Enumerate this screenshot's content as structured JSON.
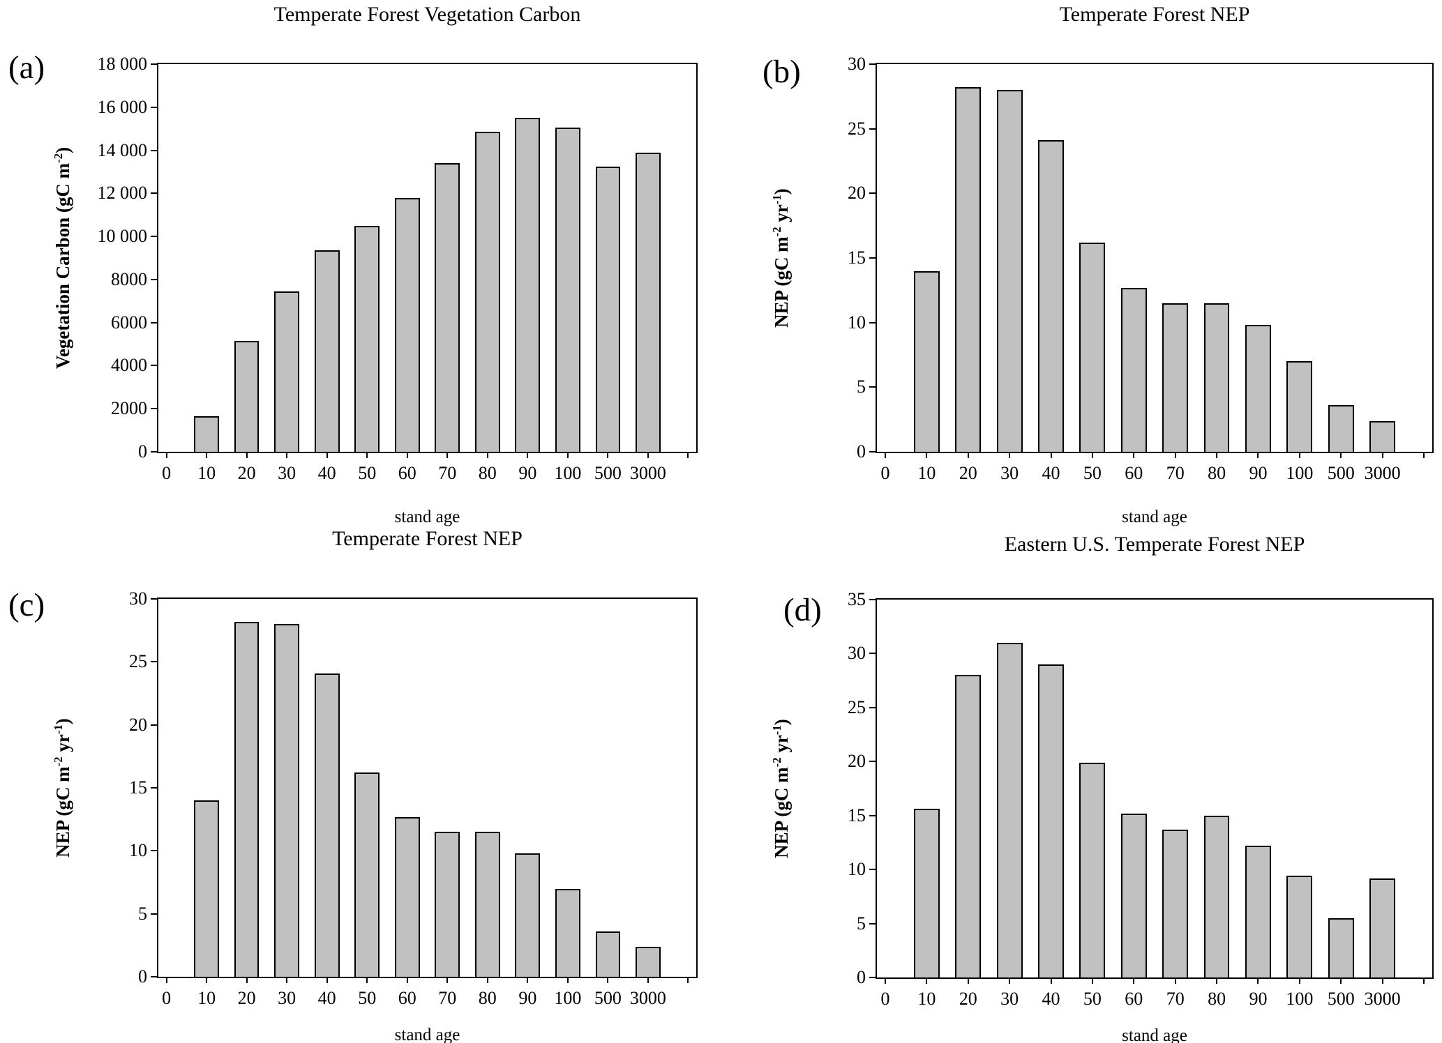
{
  "chart_data": [
    {
      "type": "bar",
      "panel_label": "(a)",
      "title": "Temperate Forest Vegetation Carbon",
      "xlabel": "stand age",
      "ylabel": "Vegetation Carbon (gC m⁻²)",
      "ylabel_parts": [
        {
          "t": "Vegetation Carbon (gC m"
        },
        {
          "t": "-2",
          "sup": true
        },
        {
          "t": ")"
        }
      ],
      "ylim": [
        0,
        18000
      ],
      "grid": false,
      "legend": false,
      "bar_fill": "#c1c1c1",
      "bar_border": "#000000",
      "categories": [
        "0",
        "10",
        "20",
        "30",
        "40",
        "50",
        "60",
        "70",
        "80",
        "90",
        "100",
        "500",
        "3000"
      ],
      "values": [
        null,
        1650,
        5150,
        7450,
        9350,
        10500,
        11800,
        13400,
        14850,
        15500,
        15050,
        13250,
        13900
      ],
      "yticks": [
        {
          "v": 0,
          "label": "0"
        },
        {
          "v": 2000,
          "label": "2000"
        },
        {
          "v": 4000,
          "label": "4000"
        },
        {
          "v": 6000,
          "label": "6000"
        },
        {
          "v": 8000,
          "label": "8000"
        },
        {
          "v": 10000,
          "label": "10 000"
        },
        {
          "v": 12000,
          "label": "12 000"
        },
        {
          "v": 14000,
          "label": "14 000"
        },
        {
          "v": 16000,
          "label": "16 000"
        },
        {
          "v": 18000,
          "label": "18 000"
        }
      ],
      "extra_tick": true
    },
    {
      "type": "bar",
      "panel_label": "(b)",
      "title": "Temperate Forest NEP",
      "xlabel": "stand age",
      "ylabel": "NEP (gC m⁻² yr⁻¹)",
      "ylabel_parts": [
        {
          "t": "NEP (gC m"
        },
        {
          "t": "-2",
          "sup": true
        },
        {
          "t": " yr"
        },
        {
          "t": "-1",
          "sup": true
        },
        {
          "t": ")"
        }
      ],
      "ylim": [
        0,
        30
      ],
      "grid": false,
      "legend": false,
      "bar_fill": "#c1c1c1",
      "bar_border": "#000000",
      "categories": [
        "0",
        "10",
        "20",
        "30",
        "40",
        "50",
        "60",
        "70",
        "80",
        "90",
        "100",
        "500",
        "3000"
      ],
      "values": [
        null,
        14.0,
        28.2,
        28.0,
        24.1,
        16.2,
        12.7,
        11.5,
        11.5,
        9.8,
        7.0,
        3.6,
        2.4
      ],
      "yticks": [
        {
          "v": 0,
          "label": "0"
        },
        {
          "v": 5,
          "label": "5"
        },
        {
          "v": 10,
          "label": "10"
        },
        {
          "v": 15,
          "label": "15"
        },
        {
          "v": 20,
          "label": "20"
        },
        {
          "v": 25,
          "label": "25"
        },
        {
          "v": 30,
          "label": "30"
        }
      ],
      "extra_tick": true
    },
    {
      "type": "bar",
      "panel_label": "(c)",
      "title": "Temperate Forest NEP",
      "xlabel": "stand age",
      "ylabel": "NEP (gC m⁻² yr⁻¹)",
      "ylabel_parts": [
        {
          "t": "NEP (gC m"
        },
        {
          "t": "-2",
          "sup": true
        },
        {
          "t": " yr"
        },
        {
          "t": "-1",
          "sup": true
        },
        {
          "t": ")"
        }
      ],
      "ylim": [
        0,
        30
      ],
      "grid": false,
      "legend": false,
      "bar_fill": "#c1c1c1",
      "bar_border": "#000000",
      "categories": [
        "0",
        "10",
        "20",
        "30",
        "40",
        "50",
        "60",
        "70",
        "80",
        "90",
        "100",
        "500",
        "3000"
      ],
      "values": [
        null,
        14.0,
        28.2,
        28.0,
        24.1,
        16.2,
        12.7,
        11.5,
        11.5,
        9.8,
        7.0,
        3.6,
        2.4
      ],
      "yticks": [
        {
          "v": 0,
          "label": "0"
        },
        {
          "v": 5,
          "label": "5"
        },
        {
          "v": 10,
          "label": "10"
        },
        {
          "v": 15,
          "label": "15"
        },
        {
          "v": 20,
          "label": "20"
        },
        {
          "v": 25,
          "label": "25"
        },
        {
          "v": 30,
          "label": "30"
        }
      ],
      "extra_tick": true
    },
    {
      "type": "bar",
      "panel_label": "(d)",
      "title": "Eastern U.S. Temperate Forest NEP",
      "xlabel": "stand age",
      "ylabel": "NEP (gC m⁻² yr⁻¹)",
      "ylabel_parts": [
        {
          "t": "NEP (gC m"
        },
        {
          "t": "-2",
          "sup": true
        },
        {
          "t": " yr"
        },
        {
          "t": "-1",
          "sup": true
        },
        {
          "t": ")"
        }
      ],
      "ylim": [
        0,
        35
      ],
      "grid": false,
      "legend": false,
      "bar_fill": "#c1c1c1",
      "bar_border": "#000000",
      "categories": [
        "0",
        "10",
        "20",
        "30",
        "40",
        "50",
        "60",
        "70",
        "80",
        "90",
        "100",
        "500",
        "3000"
      ],
      "values": [
        null,
        15.6,
        28.0,
        31.0,
        29.0,
        19.9,
        15.2,
        13.7,
        15.0,
        12.2,
        9.4,
        5.5,
        9.2
      ],
      "yticks": [
        {
          "v": 0,
          "label": "0"
        },
        {
          "v": 5,
          "label": "5"
        },
        {
          "v": 10,
          "label": "10"
        },
        {
          "v": 15,
          "label": "15"
        },
        {
          "v": 20,
          "label": "20"
        },
        {
          "v": 25,
          "label": "25"
        },
        {
          "v": 30,
          "label": "30"
        },
        {
          "v": 35,
          "label": "35"
        }
      ],
      "extra_tick": true
    }
  ]
}
